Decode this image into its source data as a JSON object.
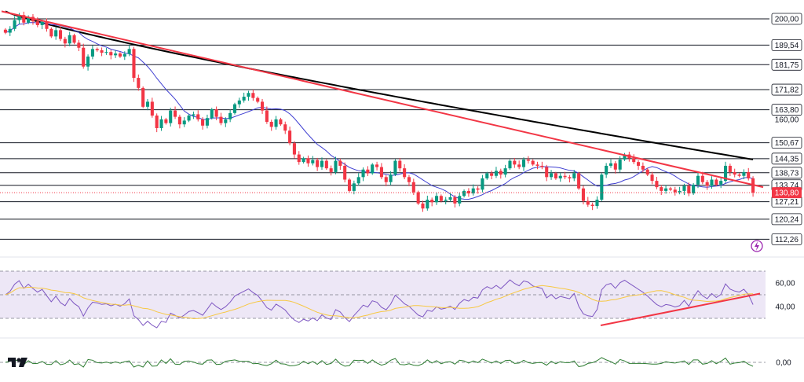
{
  "chart_data": {
    "type": "candlestick",
    "price_axis": {
      "ylim": [
        108,
        205
      ],
      "ticks": [
        {
          "value": 200,
          "label": "200,00"
        },
        {
          "value": 189.54,
          "label": "189,54"
        },
        {
          "value": 181.75,
          "label": "181,75"
        },
        {
          "value": 171.82,
          "label": "171,82"
        },
        {
          "value": 163.8,
          "label": "163,80"
        },
        {
          "value": 160.0,
          "label": "160,00"
        },
        {
          "value": 150.67,
          "label": "150,67"
        },
        {
          "value": 144.35,
          "label": "144,35"
        },
        {
          "value": 138.73,
          "label": "138,73"
        },
        {
          "value": 133.74,
          "label": "133,74"
        },
        {
          "value": 127.21,
          "label": "127,21"
        },
        {
          "value": 120.24,
          "label": "120,24"
        },
        {
          "value": 112.26,
          "label": "112,26"
        }
      ],
      "current_price": {
        "value": 130.8,
        "label": "130,80",
        "color": "#f23645"
      }
    },
    "horizontal_levels": [
      200,
      189.54,
      181.75,
      171.82,
      163.8,
      150.67,
      144.35,
      138.73,
      133.74,
      127.21,
      120.24,
      112.26
    ],
    "close_series": [
      194.5,
      196.0,
      199.5,
      201.5,
      198.5,
      200.8,
      199.0,
      197.5,
      198.8,
      196.0,
      193.0,
      195.5,
      192.0,
      190.2,
      193.5,
      190.5,
      188.5,
      181.0,
      185.0,
      188.0,
      187.5,
      186.5,
      186.8,
      185.5,
      186.2,
      185.0,
      186.0,
      188.0,
      176.5,
      172.5,
      165.0,
      167.0,
      161.5,
      156.5,
      160.0,
      158.5,
      163.5,
      161.0,
      158.0,
      159.5,
      161.5,
      162.0,
      160.0,
      157.5,
      160.5,
      164.0,
      161.0,
      158.5,
      160.0,
      162.5,
      166.0,
      167.5,
      169.0,
      170.5,
      168.5,
      167.0,
      163.5,
      159.0,
      157.0,
      160.0,
      158.0,
      155.5,
      150.5,
      146.0,
      143.0,
      144.5,
      142.5,
      143.8,
      141.0,
      143.5,
      140.5,
      139.0,
      143.5,
      141.5,
      136.0,
      131.5,
      134.5,
      137.0,
      140.0,
      138.5,
      142.0,
      141.0,
      137.0,
      135.0,
      138.0,
      143.5,
      140.5,
      137.0,
      135.0,
      131.0,
      126.5,
      124.5,
      128.0,
      127.0,
      129.5,
      127.5,
      128.0,
      129.0,
      126.5,
      129.5,
      131.5,
      130.5,
      132.5,
      132.0,
      136.5,
      138.5,
      137.5,
      139.5,
      138.0,
      140.5,
      143.5,
      142.0,
      141.0,
      144.0,
      143.5,
      142.0,
      141.5,
      141.0,
      137.0,
      138.5,
      136.5,
      137.5,
      137.0,
      136.5,
      138.5,
      132.5,
      127.5,
      126.0,
      125.5,
      128.0,
      138.0,
      141.5,
      142.5,
      140.0,
      144.0,
      146.0,
      144.5,
      143.0,
      141.5,
      140.0,
      138.0,
      135.5,
      133.0,
      131.5,
      132.5,
      132.0,
      131.0,
      131.5,
      133.5,
      130.5,
      134.0,
      137.5,
      135.0,
      133.5,
      136.0,
      134.0,
      135.5,
      141.5,
      139.0,
      138.0,
      137.5,
      139.0,
      136.5,
      130.8
    ],
    "series": [
      {
        "name": "",
        "kind": "moving-average-long",
        "color": "#000000"
      },
      {
        "name": "",
        "kind": "moving-average-short",
        "color": "#3f3fd1"
      },
      {
        "name": "",
        "kind": "trendline-down",
        "color": "#f23645"
      }
    ],
    "candle_colors": {
      "up": "#089981",
      "down": "#f23645"
    },
    "rsi": {
      "ylim": [
        20,
        80
      ],
      "ticks": [
        {
          "value": 60,
          "label": "60,00"
        },
        {
          "value": 40,
          "label": "40,00"
        }
      ],
      "upper": 70,
      "mid": 50,
      "lower": 30,
      "line_color": "#7e57c2",
      "signal_color": "#f7c843",
      "band_color": "#ede7f6"
    },
    "oscillator": {
      "ticks": [
        {
          "value": 0,
          "label": "0,00"
        }
      ],
      "line_color": "#2e7d32"
    },
    "logo": "tradingview-logo"
  }
}
